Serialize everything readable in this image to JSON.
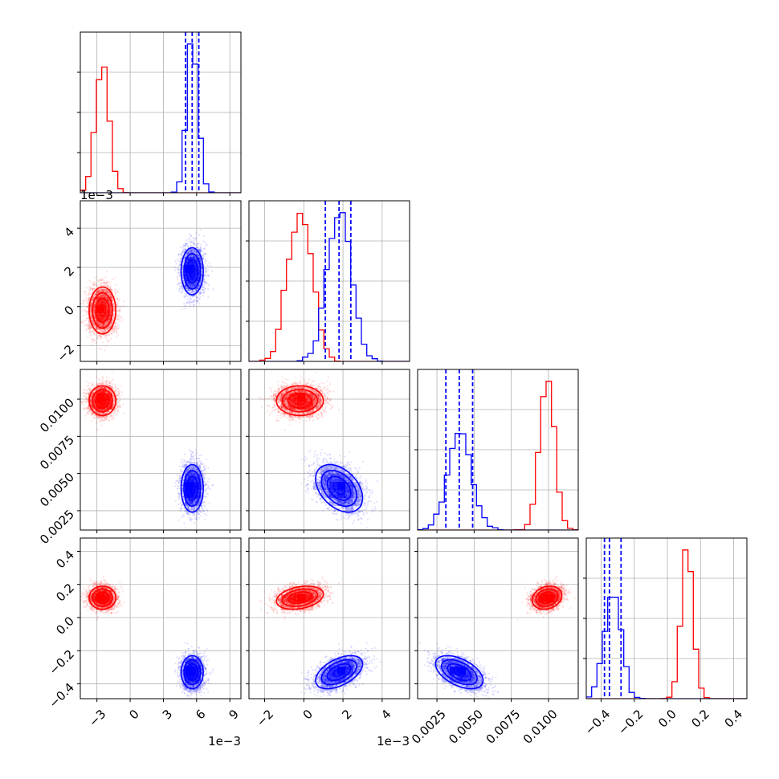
{
  "chart_data": {
    "type": "corner",
    "title": "",
    "colors": {
      "red": "#ff0000",
      "blue": "#0000ff"
    },
    "grid": true,
    "legend": "none",
    "parameters": [
      {
        "range": [
          -0.0045,
          0.01
        ],
        "ticks": [
          -0.003,
          0.0,
          0.003,
          0.006,
          0.009
        ],
        "tick_labels": [
          "−3",
          "0",
          "3",
          "6",
          "9"
        ],
        "offset_label": "1e−3"
      },
      {
        "range": [
          -0.0028,
          0.0054
        ],
        "ticks": [
          -0.002,
          0.0,
          0.002,
          0.004
        ],
        "tick_labels": [
          "−2",
          "0",
          "2",
          "4"
        ],
        "offset_label": "1e−3"
      },
      {
        "range": [
          0.0012,
          0.012
        ],
        "ticks": [
          0.0025,
          0.005,
          0.0075,
          0.01
        ],
        "tick_labels": [
          "0.0025",
          "0.0050",
          "0.0075",
          "0.0100"
        ],
        "offset_label": ""
      },
      {
        "range": [
          -0.49,
          0.48
        ],
        "ticks": [
          -0.4,
          -0.2,
          0.0,
          0.2,
          0.4
        ],
        "tick_labels": [
          "−0.4",
          "−0.2",
          "0.0",
          "0.2",
          "0.4"
        ],
        "offset_label": ""
      }
    ],
    "series": [
      {
        "name": "",
        "color": "red",
        "mean": [
          -0.0025,
          -0.0002,
          0.0099,
          0.12
        ],
        "sd": [
          0.0006,
          0.0006,
          0.0005,
          0.035
        ],
        "corr": [
          [
            1,
            0.0,
            0.0,
            0.0
          ],
          [
            0.0,
            1,
            0.0,
            0.3
          ],
          [
            0.0,
            0.0,
            1,
            0.2
          ],
          [
            0.0,
            0.3,
            0.2,
            1
          ]
        ],
        "quantiles": null
      },
      {
        "name": "",
        "color": "blue",
        "mean": [
          0.0056,
          0.0018,
          0.004,
          -0.33
        ],
        "sd": [
          0.0005,
          0.0006,
          0.0008,
          0.05
        ],
        "corr": [
          [
            1,
            0.0,
            0.0,
            0.0
          ],
          [
            0.0,
            1,
            -0.4,
            0.5
          ],
          [
            0.0,
            -0.4,
            1,
            -0.5
          ],
          [
            0.0,
            0.5,
            -0.5,
            1
          ]
        ],
        "quantiles": [
          [
            0.005,
            0.0056,
            0.0062
          ],
          [
            0.0011,
            0.0018,
            0.0024
          ],
          [
            0.0031,
            0.004,
            0.0049
          ],
          [
            -0.38,
            -0.35,
            -0.28
          ]
        ]
      }
    ]
  }
}
